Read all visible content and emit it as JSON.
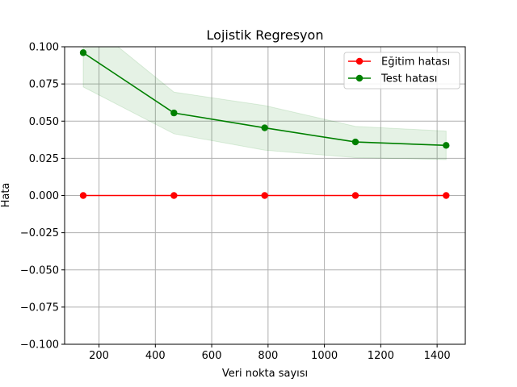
{
  "chart_data": {
    "type": "line",
    "title": "Lojistik Regresyon",
    "xlabel": "Veri nokta sayısı",
    "ylabel": "Hata",
    "xlim": [
      78,
      1500
    ],
    "ylim": [
      -0.1,
      0.1
    ],
    "xticks": [
      200,
      400,
      600,
      800,
      1000,
      1200,
      1400
    ],
    "xtick_labels": [
      "200",
      "400",
      "600",
      "800",
      "1000",
      "1200",
      "1400"
    ],
    "yticks": [
      -0.1,
      -0.075,
      -0.05,
      -0.025,
      0.0,
      0.025,
      0.05,
      0.075,
      0.1
    ],
    "ytick_labels": [
      "−0.100",
      "−0.075",
      "−0.050",
      "−0.025",
      "0.000",
      "0.025",
      "0.050",
      "0.075",
      "0.100"
    ],
    "grid": true,
    "legend_position": "top-right",
    "x": [
      144,
      466,
      788,
      1110,
      1432
    ],
    "series": [
      {
        "name": "Eğitim hatası",
        "color": "#ff0000",
        "marker": "circle",
        "values": [
          0.0,
          0.0,
          0.0,
          0.0,
          0.0
        ]
      },
      {
        "name": "Test hatası",
        "color": "#008000",
        "marker": "circle",
        "values": [
          0.096,
          0.0555,
          0.0455,
          0.036,
          0.0337
        ],
        "band_upper": [
          0.119,
          0.0695,
          0.0605,
          0.0465,
          0.0433
        ],
        "band_lower": [
          0.073,
          0.0415,
          0.0305,
          0.0255,
          0.0241
        ],
        "band_color": "#008000"
      }
    ]
  }
}
